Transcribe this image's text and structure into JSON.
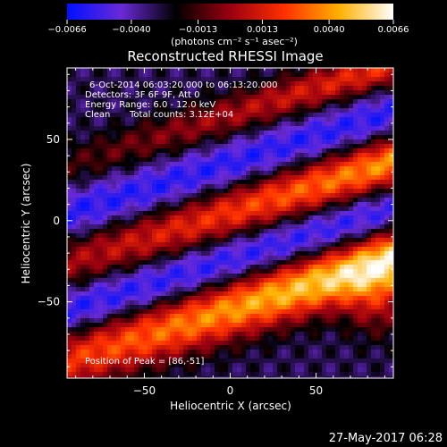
{
  "chart_data": {
    "type": "heatmap",
    "title": "Reconstructed RHESSI Image",
    "xlabel": "Heliocentric X (arcsec)",
    "ylabel": "Heliocentric Y (arcsec)",
    "xlim": [
      -95,
      95
    ],
    "ylim": [
      -97,
      94
    ],
    "x_ticks": [
      -50,
      0,
      50
    ],
    "y_ticks": [
      50,
      0,
      -50
    ],
    "x_tick_labels": [
      "−50",
      "0",
      "50"
    ],
    "y_tick_labels": [
      "50",
      "0",
      "−50"
    ],
    "colorbar": {
      "range": [
        -0.0066,
        0.0066
      ],
      "ticks": [
        -0.0066,
        -0.004,
        -0.0013,
        0.0013,
        0.004,
        0.0066
      ],
      "tick_labels": [
        "−0.0066",
        "−0.0040",
        "−0.0013",
        "0.0013",
        "0.0040",
        "0.0066"
      ],
      "unit_label": "(photons cm⁻² s⁻¹ asec⁻²)",
      "stops": [
        "#0010ff",
        "#6a2ad6",
        "#000000",
        "#9a0010",
        "#ff3000",
        "#ffb000",
        "#ffffff"
      ]
    },
    "annotations": [
      "6-Oct-2014 06:03:20.000 to 06:13:20.000",
      "Detectors: 3F 6F 9F, Att 0",
      "Energy Range: 6.0 - 12.0 keV",
      "Clean",
      "Total counts: 3.12E+04"
    ],
    "peak_label": "Position of Peak = [86,-51]",
    "peak": [
      86,
      -51
    ],
    "peak_value": 0.0066,
    "grid": false
  },
  "footer": {
    "timestamp": "27-May-2017 06:28"
  }
}
